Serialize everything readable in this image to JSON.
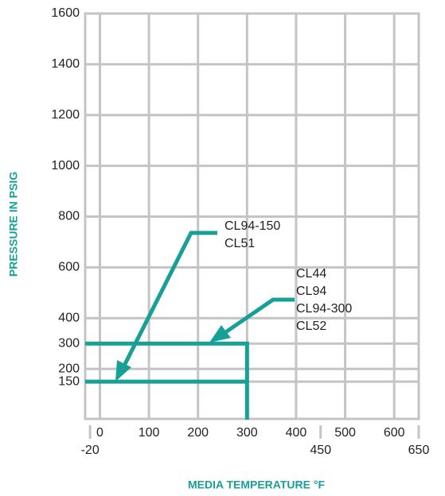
{
  "chart_data": {
    "type": "line",
    "xlabel": "MEDIA TEMPERATURE °F",
    "ylabel": "PRESSURE IN PSIG",
    "xlim": [
      -30,
      650
    ],
    "ylim": [
      0,
      1600
    ],
    "xticks": [
      -20,
      0,
      100,
      200,
      300,
      400,
      450,
      500,
      600,
      650
    ],
    "yticks": [
      150,
      200,
      300,
      400,
      600,
      800,
      1000,
      1200,
      1400,
      1600
    ],
    "grid": true,
    "series": [
      {
        "color": "#17a096",
        "x": [
          -30,
          300,
          300
        ],
        "values": [
          300,
          300,
          0
        ]
      },
      {
        "color": "#17a096",
        "x": [
          -30,
          300
        ],
        "values": [
          150,
          150
        ]
      }
    ],
    "annotations": [
      {
        "lines": [
          "CL94-150",
          "CL51"
        ]
      },
      {
        "lines": [
          "CL44",
          "CL94",
          "CL94-300",
          "CL52"
        ]
      }
    ]
  }
}
